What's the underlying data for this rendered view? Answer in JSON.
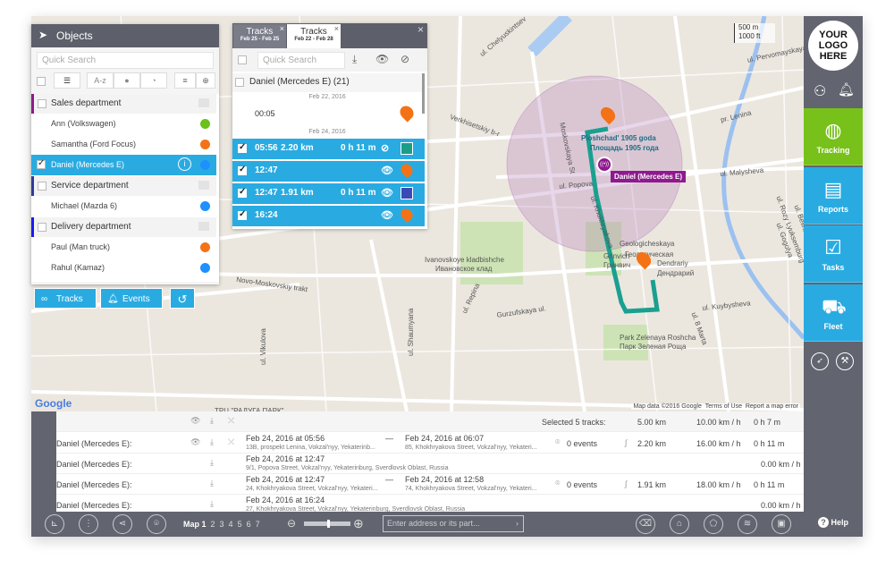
{
  "objects_panel": {
    "title": "Objects",
    "search_placeholder": "Quick Search",
    "sort_label": "A-z",
    "groups": [
      {
        "name": "Sales department",
        "color": "#8e1a8e",
        "items": [
          {
            "name": "Ann (Volkswagen)",
            "color": "#6ac11a"
          },
          {
            "name": "Samantha (Ford Focus)",
            "color": "#f47216"
          },
          {
            "name": "Daniel (Mercedes E)",
            "color": "#1e90ff",
            "selected": true
          }
        ]
      },
      {
        "name": "Service department",
        "color": "#2e3a9e",
        "items": [
          {
            "name": "Michael (Mazda 6)",
            "color": "#1e90ff"
          }
        ]
      },
      {
        "name": "Delivery department",
        "color": "#1a1aee",
        "items": [
          {
            "name": "Paul (Man truck)",
            "color": "#f47216"
          },
          {
            "name": "Rahul (Kamaz)",
            "color": "#1e90ff"
          }
        ]
      }
    ],
    "buttons": {
      "tracks": "Tracks",
      "events": "Events"
    }
  },
  "tracks_panel": {
    "tabs": [
      {
        "title": "Tracks",
        "dates": "Feb 25 - Feb 25",
        "active": false
      },
      {
        "title": "Tracks",
        "dates": "Feb 22 - Feb 28",
        "active": true
      }
    ],
    "search_placeholder": "Quick Search",
    "object_header": "Daniel (Mercedes E) (21)",
    "date1": "Feb 22, 2016",
    "row0_time": "00:05",
    "date2": "Feb 24, 2016",
    "rows": [
      {
        "time": "05:56",
        "distance": "2.20 km",
        "duration": "0 h 11 m",
        "swatch": "#1a9e85"
      },
      {
        "time": "12:47",
        "marker": "5"
      },
      {
        "time": "12:47",
        "distance": "1.91 km",
        "duration": "0 h 11 m",
        "swatch": "#3b4bb5"
      },
      {
        "time": "16:24",
        "marker": "5"
      }
    ]
  },
  "map": {
    "scale_m": "500 m",
    "scale_ft": "1000 ft",
    "vehicle_label": "Daniel (Mercedes E)",
    "attribution": "Map data ©2016 Google",
    "terms": "Terms of Use",
    "report": "Report a map error",
    "google": "Google",
    "labels": [
      "Ploshchad' 1905 goda",
      "Площадь 1905 года",
      "Geologicheskaya",
      "Геологическая",
      "Grinvich",
      "Гринвич",
      "Dendrariy",
      "Дендрарий",
      "Ivanovskoye kladbishche",
      "Ивановское клад",
      "Park Zelenaya Roshcha",
      "Парк Зеленая Роща",
      "pr. Lenina",
      "ul. Malysheva",
      "ul. Kuybysheva",
      "Gurzufskaya ul.",
      "Novo-Moskovskiy trakt",
      "Moskovskaya St",
      "ul. Repina",
      "ul. Chelyuskintsev",
      "ul. Pervomayskaya",
      "ul. Vikulova",
      "ul. 8 Marta",
      "ul. Khokhryakova",
      "ul. Popova",
      "ul. Rozy Lyuksemburg",
      "ul. Belinskogo",
      "ul. Gogolya",
      "ul. Shaumyana",
      "Verkhisetskiy b-r",
      "ТРЦ \"РАДУГА ПАРК\""
    ]
  },
  "sidebar": {
    "logo": "YOUR LOGO HERE",
    "nav": [
      {
        "label": "Tracking",
        "color": "#77c11a"
      },
      {
        "label": "Reports",
        "color": "#29abe2"
      },
      {
        "label": "Tasks",
        "color": "#29abe2"
      },
      {
        "label": "Fleet",
        "color": "#29abe2"
      }
    ],
    "help": "Help"
  },
  "table": {
    "summary_label": "Selected 5 tracks:",
    "summary_distance": "5.00 km",
    "summary_speed": "10.00 km / h",
    "summary_duration": "0 h 7 m",
    "rows": [
      {
        "object": "Daniel (Mercedes E):",
        "start": "Feb 24, 2016 at 05:56",
        "start_addr": "13B, prospekt Lenina, Vokzal'nyy, Yekaterinb...",
        "dash": "—",
        "end": "Feb 24, 2016 at 06:07",
        "end_addr": "85, Khokhryakova Street, Vokzal'nyy, Yekateri...",
        "events": "0 events",
        "distance": "2.20 km",
        "speed": "16.00 km / h",
        "duration": "0 h 11 m"
      },
      {
        "object": "Daniel (Mercedes E):",
        "start": "Feb 24, 2016 at 12:47",
        "start_addr": "9/1, Popova Street, Vokzal'nyy, Yekaterinburg, Sverdlovsk Oblast, Russia",
        "speed": "0.00 km / h"
      },
      {
        "object": "Daniel (Mercedes E):",
        "start": "Feb 24, 2016 at 12:47",
        "start_addr": "24, Khokhryakova Street, Vokzal'nyy, Yekateri...",
        "dash": "—",
        "end": "Feb 24, 2016 at 12:58",
        "end_addr": "74, Khokhryakova Street, Vokzal'nyy, Yekateri...",
        "events": "0 events",
        "distance": "1.91 km",
        "speed": "18.00 km / h",
        "duration": "0 h 11 m"
      },
      {
        "object": "Daniel (Mercedes E):",
        "start": "Feb 24, 2016 at 16:24",
        "start_addr": "27, Khokhryakova Street, Vokzal'nyy, Yekaterinburg, Sverdlovsk Oblast, Russia",
        "speed": "0.00 km / h"
      }
    ]
  },
  "bottom_bar": {
    "maps": [
      "Map 1",
      "2",
      "3",
      "4",
      "5",
      "6",
      "7"
    ],
    "address_placeholder": "Enter address or its part..."
  }
}
